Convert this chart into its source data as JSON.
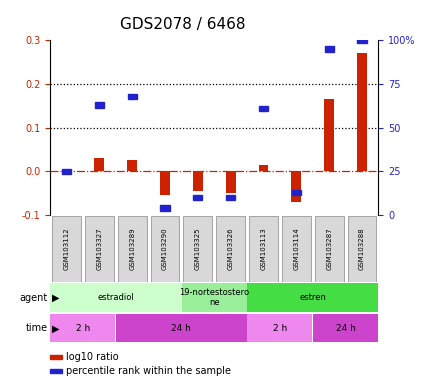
{
  "title": "GDS2078 / 6468",
  "samples": [
    "GSM103112",
    "GSM103327",
    "GSM103289",
    "GSM103290",
    "GSM103325",
    "GSM103326",
    "GSM103113",
    "GSM103114",
    "GSM103287",
    "GSM103288"
  ],
  "log10_ratio": [
    -0.008,
    0.03,
    0.025,
    -0.055,
    -0.045,
    -0.05,
    0.015,
    -0.07,
    0.165,
    0.27
  ],
  "percentile_rank_pct": [
    25,
    63,
    68,
    4,
    10,
    10,
    61,
    13,
    95,
    100
  ],
  "ylim_left": [
    -0.1,
    0.3
  ],
  "ylim_right": [
    0,
    100
  ],
  "yticks_left": [
    -0.1,
    0.0,
    0.1,
    0.2,
    0.3
  ],
  "yticks_right": [
    0,
    25,
    50,
    75,
    100
  ],
  "yticks_right_labels": [
    "0",
    "25",
    "50",
    "75",
    "100%"
  ],
  "dotted_hlines": [
    0.1,
    0.2
  ],
  "zero_dashdot_line": 0.0,
  "agent_labels": [
    {
      "label": "estradiol",
      "start": 0,
      "end": 4,
      "color": "#ccffcc"
    },
    {
      "label": "19-nortestostero\nne",
      "start": 4,
      "end": 6,
      "color": "#99ee99"
    },
    {
      "label": "estren",
      "start": 6,
      "end": 10,
      "color": "#44dd44"
    }
  ],
  "time_labels": [
    {
      "label": "2 h",
      "start": 0,
      "end": 2,
      "color": "#ee88ee"
    },
    {
      "label": "24 h",
      "start": 2,
      "end": 6,
      "color": "#cc44cc"
    },
    {
      "label": "2 h",
      "start": 6,
      "end": 8,
      "color": "#ee88ee"
    },
    {
      "label": "24 h",
      "start": 8,
      "end": 10,
      "color": "#cc44cc"
    }
  ],
  "bar_color_red": "#cc2200",
  "bar_color_blue": "#2222cc",
  "zero_line_color": "#cc2200",
  "title_fontsize": 11,
  "tick_fontsize": 7,
  "legend_fontsize": 7,
  "sample_box_color": "#d8d8d8",
  "agent_row_label": "agent",
  "time_row_label": "time",
  "bar_width": 0.3
}
